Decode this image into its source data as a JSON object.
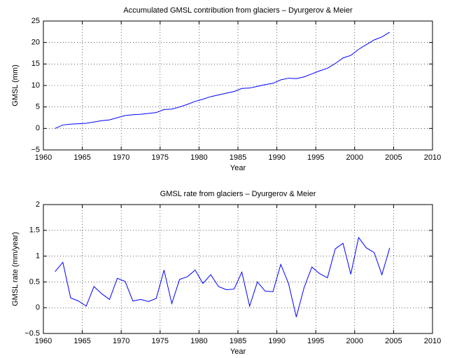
{
  "chart_data": [
    {
      "type": "line",
      "title": "Accumulated GMSL contribution from glaciers – Dyurgerov & Meier",
      "x_label": "Year",
      "y_label": "GMSL (mm)",
      "color": "#0000ff",
      "grid": true,
      "x": [
        1961.5,
        1962.5,
        1963.5,
        1964.5,
        1965.5,
        1966.5,
        1967.5,
        1968.5,
        1969.5,
        1970.5,
        1971.5,
        1972.5,
        1973.5,
        1974.5,
        1975.5,
        1976.5,
        1977.5,
        1978.5,
        1979.5,
        1980.5,
        1981.5,
        1982.5,
        1983.5,
        1984.5,
        1985.5,
        1986.5,
        1987.5,
        1988.5,
        1989.5,
        1990.5,
        1991.5,
        1992.5,
        1993.5,
        1994.5,
        1995.5,
        1996.5,
        1997.5,
        1998.5,
        1999.5,
        2000.5,
        2001.5,
        2002.5,
        2003.5,
        2004.5
      ],
      "values": [
        0,
        0.8,
        1.0,
        1.1,
        1.2,
        1.5,
        1.8,
        2.0,
        2.5,
        3.0,
        3.2,
        3.3,
        3.5,
        3.7,
        4.4,
        4.5,
        5.0,
        5.6,
        6.3,
        6.8,
        7.4,
        7.8,
        8.2,
        8.6,
        9.3,
        9.4,
        9.8,
        10.2,
        10.5,
        11.3,
        11.7,
        11.6,
        12.0,
        12.7,
        13.4,
        14.0,
        15.1,
        16.4,
        17.0,
        18.4,
        19.5,
        20.6,
        21.3,
        22.4
      ],
      "xlim": [
        1960,
        2010
      ],
      "xticks": [
        1960,
        1965,
        1970,
        1975,
        1980,
        1985,
        1990,
        1995,
        2000,
        2005,
        2010
      ],
      "ylim": [
        -5,
        25
      ],
      "yticks": [
        {
          "value": -5,
          "label": "−5"
        },
        0,
        5,
        10,
        15,
        20,
        25
      ]
    },
    {
      "type": "line",
      "title": "GMSL rate from glaciers – Dyurgerov & Meier",
      "x_label": "Year",
      "y_label": "GMSL rate (mm/year)",
      "color": "#0000ff",
      "grid": true,
      "x": [
        1961.5,
        1962.5,
        1963.5,
        1964.5,
        1965.5,
        1966.5,
        1967.5,
        1968.5,
        1969.5,
        1970.5,
        1971.5,
        1972.5,
        1973.5,
        1974.5,
        1975.5,
        1976.5,
        1977.5,
        1978.5,
        1979.5,
        1980.5,
        1981.5,
        1982.5,
        1983.5,
        1984.5,
        1985.5,
        1986.5,
        1987.5,
        1988.5,
        1989.5,
        1990.5,
        1991.5,
        1992.5,
        1993.5,
        1994.5,
        1995.5,
        1996.5,
        1997.5,
        1998.5,
        1999.5,
        2000.5,
        2001.5,
        2002.5,
        2003.5,
        2004.5
      ],
      "values": [
        0.7,
        0.88,
        0.19,
        0.13,
        0.03,
        0.41,
        0.27,
        0.16,
        0.57,
        0.51,
        0.13,
        0.16,
        0.12,
        0.18,
        0.73,
        0.08,
        0.55,
        0.6,
        0.73,
        0.47,
        0.64,
        0.41,
        0.35,
        0.36,
        0.69,
        0.03,
        0.5,
        0.32,
        0.31,
        0.84,
        0.47,
        -0.18,
        0.39,
        0.79,
        0.66,
        0.58,
        1.14,
        1.25,
        0.65,
        1.36,
        1.16,
        1.07,
        0.64,
        1.16
      ],
      "xlim": [
        1960,
        2010
      ],
      "xticks": [
        1960,
        1965,
        1970,
        1975,
        1980,
        1985,
        1990,
        1995,
        2000,
        2005,
        2010
      ],
      "ylim": [
        -0.5,
        2
      ],
      "yticks": [
        {
          "value": -0.5,
          "label": "−0.5"
        },
        0,
        0.5,
        1,
        1.5,
        2
      ]
    }
  ]
}
